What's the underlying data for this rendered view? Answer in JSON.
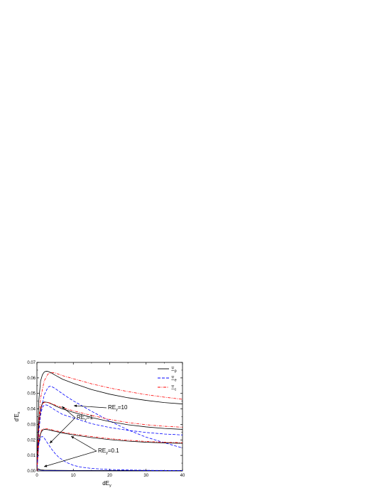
{
  "chart_data": {
    "type": "line",
    "xlabel": "dE",
    "xlabel_sub": "y",
    "ylabel": "d'E",
    "ylabel_sub": "x",
    "xlim": [
      0,
      40
    ],
    "ylim": [
      0,
      0.07
    ],
    "xticks": [
      0,
      10,
      20,
      30,
      40
    ],
    "yticks": [
      0.0,
      0.01,
      0.02,
      0.03,
      0.04,
      0.05,
      0.06,
      0.07
    ],
    "ytick_labels": [
      "0.00",
      "0.01",
      "0.02",
      "0.03",
      "0.04",
      "0.05",
      "0.06",
      "0.07"
    ],
    "legend": {
      "position": "top-right",
      "entries": [
        {
          "label": "Ξ",
          "sub": "p",
          "color": "#000000",
          "dash": "solid"
        },
        {
          "label": "Ξ",
          "sub": "e",
          "color": "#0000ff",
          "dash": "dashed"
        },
        {
          "label": "Ξ",
          "sub": "c",
          "color": "#ff0000",
          "dash": "dashdot"
        }
      ]
    },
    "annotations": [
      {
        "text": "RE",
        "sub": "y",
        "suffix": "=10"
      },
      {
        "text": "RE",
        "sub": "y",
        "suffix": "=1"
      },
      {
        "text": "RE",
        "sub": "y",
        "suffix": "=0.1"
      }
    ],
    "groups": [
      {
        "re": "10",
        "series": [
          {
            "name": "Ξp",
            "color": "#000000",
            "dash": "solid",
            "x": [
              0,
              0.5,
              1,
              1.5,
              2,
              2.5,
              3,
              4,
              5,
              7,
              10,
              15,
              20,
              25,
              30,
              35,
              40
            ],
            "y": [
              0,
              0.045,
              0.058,
              0.062,
              0.0638,
              0.0643,
              0.0642,
              0.0632,
              0.0618,
              0.0592,
              0.0565,
              0.0525,
              0.0495,
              0.0472,
              0.0455,
              0.0441,
              0.0432
            ]
          },
          {
            "name": "Ξe",
            "color": "#0000ff",
            "dash": "dashed",
            "x": [
              0,
              0.5,
              1,
              2,
              3,
              3.5,
              4,
              5,
              6,
              8,
              10,
              15,
              20,
              25,
              30,
              35,
              40
            ],
            "y": [
              0,
              0.025,
              0.038,
              0.049,
              0.0538,
              0.0546,
              0.0545,
              0.0532,
              0.0515,
              0.0482,
              0.0452,
              0.0385,
              0.0322,
              0.0265,
              0.0218,
              0.0182,
              0.0148
            ]
          },
          {
            "name": "Ξc",
            "color": "#ff0000",
            "dash": "dashdot",
            "x": [
              0,
              0.5,
              1,
              2,
              3,
              4,
              5,
              7,
              10,
              15,
              20,
              25,
              30,
              35,
              40
            ],
            "y": [
              0,
              0.032,
              0.047,
              0.058,
              0.0625,
              0.0635,
              0.0632,
              0.0615,
              0.0595,
              0.0562,
              0.0535,
              0.0512,
              0.0492,
              0.0476,
              0.0462
            ]
          }
        ]
      },
      {
        "re": "1",
        "series": [
          {
            "name": "Ξp",
            "color": "#000000",
            "dash": "solid",
            "x": [
              0,
              0.5,
              1,
              1.5,
              2,
              3,
              4,
              5,
              7,
              10,
              15,
              20,
              25,
              30,
              35,
              40
            ],
            "y": [
              0,
              0.03,
              0.04,
              0.0438,
              0.0445,
              0.0442,
              0.0432,
              0.042,
              0.04,
              0.0378,
              0.0345,
              0.0318,
              0.0298,
              0.0284,
              0.0274,
              0.0268
            ]
          },
          {
            "name": "Ξe",
            "color": "#0000ff",
            "dash": "dashed",
            "x": [
              0,
              0.5,
              1,
              1.5,
              2,
              2.5,
              3,
              4,
              5,
              7,
              10,
              15,
              20,
              25,
              30,
              35,
              40
            ],
            "y": [
              0,
              0.025,
              0.036,
              0.041,
              0.0425,
              0.0426,
              0.0422,
              0.0408,
              0.0392,
              0.0365,
              0.0342,
              0.0305,
              0.028,
              0.0262,
              0.0248,
              0.0238,
              0.0232
            ]
          },
          {
            "name": "Ξc",
            "color": "#ff0000",
            "dash": "dashdot",
            "x": [
              0,
              0.5,
              1,
              1.5,
              2,
              3,
              4,
              5,
              7,
              10,
              15,
              20,
              25,
              30,
              35,
              40
            ],
            "y": [
              0,
              0.028,
              0.039,
              0.0432,
              0.0442,
              0.0442,
              0.0435,
              0.0425,
              0.0408,
              0.0388,
              0.0358,
              0.0332,
              0.0312,
              0.0298,
              0.0288,
              0.0282
            ]
          }
        ]
      },
      {
        "re": "0.1",
        "series": [
          {
            "name": "Ξp",
            "color": "#000000",
            "dash": "solid",
            "x": [
              0,
              0.5,
              1,
              1.5,
              2,
              3,
              4,
              5,
              7,
              10,
              15,
              20,
              25,
              30,
              35,
              40
            ],
            "y": [
              0,
              0.018,
              0.024,
              0.0262,
              0.0268,
              0.0266,
              0.0261,
              0.0255,
              0.0245,
              0.0232,
              0.0215,
              0.0202,
              0.0192,
              0.0185,
              0.0181,
              0.0178
            ]
          },
          {
            "name": "Ξe",
            "color": "#0000ff",
            "dash": "dashed",
            "x": [
              0,
              0.5,
              1,
              1.5,
              2,
              2.5,
              3,
              4,
              5,
              6,
              8,
              10,
              12,
              15,
              20,
              25,
              30,
              35,
              40
            ],
            "y": [
              0,
              0.017,
              0.0218,
              0.0222,
              0.0212,
              0.0195,
              0.0176,
              0.0142,
              0.0112,
              0.0088,
              0.0056,
              0.0036,
              0.0025,
              0.0016,
              0.0009,
              0.0006,
              0.0004,
              0.0003,
              0.0002
            ]
          },
          {
            "name": "Ξc",
            "color": "#ff0000",
            "dash": "dashdot",
            "x": [
              0,
              0.5,
              1,
              1.5,
              2,
              3,
              4,
              5,
              7,
              10,
              15,
              20,
              25,
              30,
              35,
              40
            ],
            "y": [
              0,
              0.02,
              0.0252,
              0.0268,
              0.0272,
              0.0271,
              0.0266,
              0.026,
              0.025,
              0.0238,
              0.0222,
              0.0208,
              0.0198,
              0.019,
              0.0185,
              0.0182
            ]
          }
        ]
      }
    ],
    "floor_lines": [
      {
        "color": "#0000ff",
        "dash": "solid",
        "x": [
          0,
          0.3,
          0.6,
          1,
          2,
          5,
          10,
          20,
          30,
          40
        ],
        "y": [
          0,
          0.0012,
          0.0008,
          0.0005,
          0.0003,
          0.0002,
          0.0001,
          0.0001,
          0.0001,
          0.0001
        ]
      },
      {
        "color": "#000000",
        "dash": "solid",
        "x": [
          0,
          0.3,
          0.6,
          1,
          2,
          5,
          10,
          20,
          30,
          40
        ],
        "y": [
          0,
          0.0014,
          0.001,
          0.0007,
          0.0005,
          0.0004,
          0.0003,
          0.0003,
          0.0003,
          0.0003
        ]
      }
    ]
  }
}
